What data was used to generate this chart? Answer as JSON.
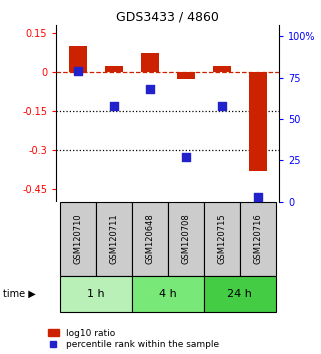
{
  "title": "GDS3433 / 4860",
  "samples": [
    "GSM120710",
    "GSM120711",
    "GSM120648",
    "GSM120708",
    "GSM120715",
    "GSM120716"
  ],
  "log10_ratio": [
    0.1,
    0.02,
    0.07,
    -0.03,
    0.02,
    -0.38
  ],
  "percentile_rank": [
    79,
    58,
    68,
    27,
    58,
    3
  ],
  "groups": [
    {
      "label": "1 h",
      "indices": [
        0,
        1
      ],
      "color": "#b8f0b8"
    },
    {
      "label": "4 h",
      "indices": [
        2,
        3
      ],
      "color": "#78e878"
    },
    {
      "label": "24 h",
      "indices": [
        4,
        5
      ],
      "color": "#44cc44"
    }
  ],
  "ylim_left": [
    -0.5,
    0.18
  ],
  "ylim_right": [
    0,
    107
  ],
  "yticks_left": [
    0.15,
    0,
    -0.15,
    -0.3,
    -0.45
  ],
  "yticks_right": [
    100,
    75,
    50,
    25,
    0
  ],
  "hlines": [
    -0.15,
    -0.3
  ],
  "bar_color": "#cc2200",
  "dot_color": "#2222cc",
  "dashed_line_y": 0,
  "bar_width": 0.5,
  "dot_size": 30,
  "legend_labels": [
    "log10 ratio",
    "percentile rank within the sample"
  ]
}
